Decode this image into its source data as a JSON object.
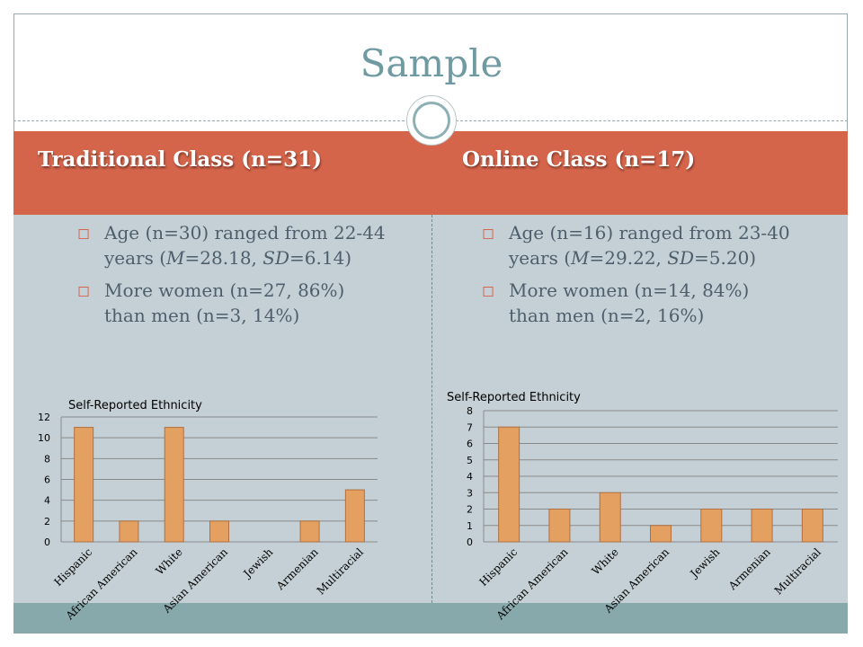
{
  "slide": {
    "title": "Sample",
    "colors": {
      "title": "#6f9aa2",
      "header_band": "#d4644a",
      "content_bg": "#c4d0d5",
      "footer": "#88a9ac",
      "bar": "#e4a060"
    }
  },
  "columns": [
    {
      "header": "Traditional Class (n=31)",
      "bullets": [
        {
          "pre": "Age (n=30) ranged from 22-44 years (",
          "m_label": "M",
          "m_value": "=28.18, ",
          "sd_label": "SD",
          "sd_value": "=6.14)"
        },
        {
          "text": "More women (n=27, 86%) than men (n=3, 14%)"
        }
      ]
    },
    {
      "header": "Online Class (n=17)",
      "bullets": [
        {
          "pre": "Age (n=16) ranged from 23-40 years (",
          "m_label": "M",
          "m_value": "=29.22, ",
          "sd_label": "SD",
          "sd_value": "=5.20)"
        },
        {
          "text": "More women (n=14, 84%) than men (n=2, 16%)"
        }
      ]
    }
  ],
  "chart_data": [
    {
      "type": "bar",
      "title": "Self-Reported Ethnicity",
      "categories": [
        "Hispanic",
        "African American",
        "White",
        "Asian American",
        "Jewish",
        "Armenian",
        "Multiracial"
      ],
      "values": [
        11,
        2,
        11,
        2,
        0,
        2,
        5
      ],
      "ylim": [
        0,
        12
      ],
      "yticks": [
        0,
        2,
        4,
        6,
        8,
        10,
        12
      ],
      "grid": true,
      "legend": "none"
    },
    {
      "type": "bar",
      "title": "Self-Reported Ethnicity",
      "categories": [
        "Hispanic",
        "African American",
        "White",
        "Asian American",
        "Jewish",
        "Armenian",
        "Multiracial"
      ],
      "values": [
        7,
        2,
        3,
        1,
        2,
        2,
        2
      ],
      "ylim": [
        0,
        8
      ],
      "yticks": [
        0,
        1,
        2,
        3,
        4,
        5,
        6,
        7,
        8
      ],
      "grid": true,
      "legend": "none"
    }
  ]
}
